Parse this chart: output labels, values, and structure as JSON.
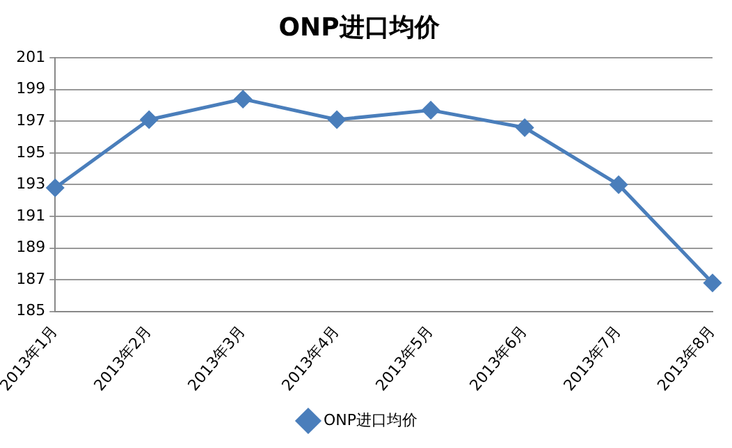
{
  "chart_data": {
    "type": "line",
    "title": "ONP进口均价",
    "categories": [
      "2013年1月",
      "2013年2月",
      "2013年3月",
      "2013年4月",
      "2013年5月",
      "2013年6月",
      "2013年7月",
      "2013年8月"
    ],
    "series": [
      {
        "name": "ONP进口均价",
        "color": "#4a7ebb",
        "values": [
          192.8,
          197.1,
          198.4,
          197.1,
          197.7,
          196.6,
          193.0,
          186.8
        ]
      }
    ],
    "ylim": [
      185,
      201
    ],
    "yticks": [
      185,
      187,
      189,
      191,
      193,
      195,
      197,
      199,
      201
    ],
    "grid": "y",
    "legend": "bottom",
    "marker": "diamond",
    "line_style": "solid"
  }
}
